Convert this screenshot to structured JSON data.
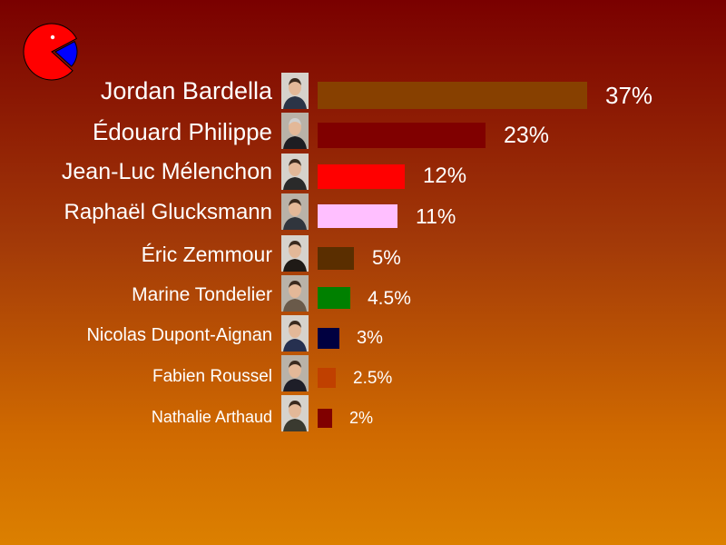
{
  "colors": {
    "logo_pie": "#ff0000",
    "logo_slice": "#0000ff",
    "text": "#ffffff"
  },
  "logo_icon": "pie-chart-pacman-icon",
  "chart_data": {
    "type": "bar",
    "orientation": "horizontal",
    "unit": "%",
    "title": "",
    "xlabel": "",
    "ylabel": "",
    "grid": false,
    "legend": "none",
    "xlim": [
      0,
      37
    ],
    "categories": [
      "Jordan Bardella",
      "Édouard Philippe",
      "Jean-Luc Mélenchon",
      "Raphaël Glucksmann",
      "Éric Zemmour",
      "Marine Tondelier",
      "Nicolas Dupont-Aignan",
      "Fabien Roussel",
      "Nathalie Arthaud"
    ],
    "values": [
      37,
      23,
      12,
      11,
      5,
      4.5,
      3,
      2.5,
      2
    ],
    "value_labels": [
      "37%",
      "23%",
      "12%",
      "11%",
      "5%",
      "4.5%",
      "3%",
      "2.5%",
      "2%"
    ],
    "bar_colors": [
      "#874000",
      "#800000",
      "#ff0000",
      "#ffbfff",
      "#5a2e00",
      "#008000",
      "#000040",
      "#c04000",
      "#800000"
    ],
    "photo_icons": [
      "portrait-photo-icon",
      "portrait-photo-icon",
      "portrait-photo-icon",
      "portrait-photo-icon",
      "portrait-photo-icon",
      "portrait-photo-icon",
      "portrait-photo-icon",
      "portrait-photo-icon",
      "portrait-photo-icon"
    ]
  }
}
